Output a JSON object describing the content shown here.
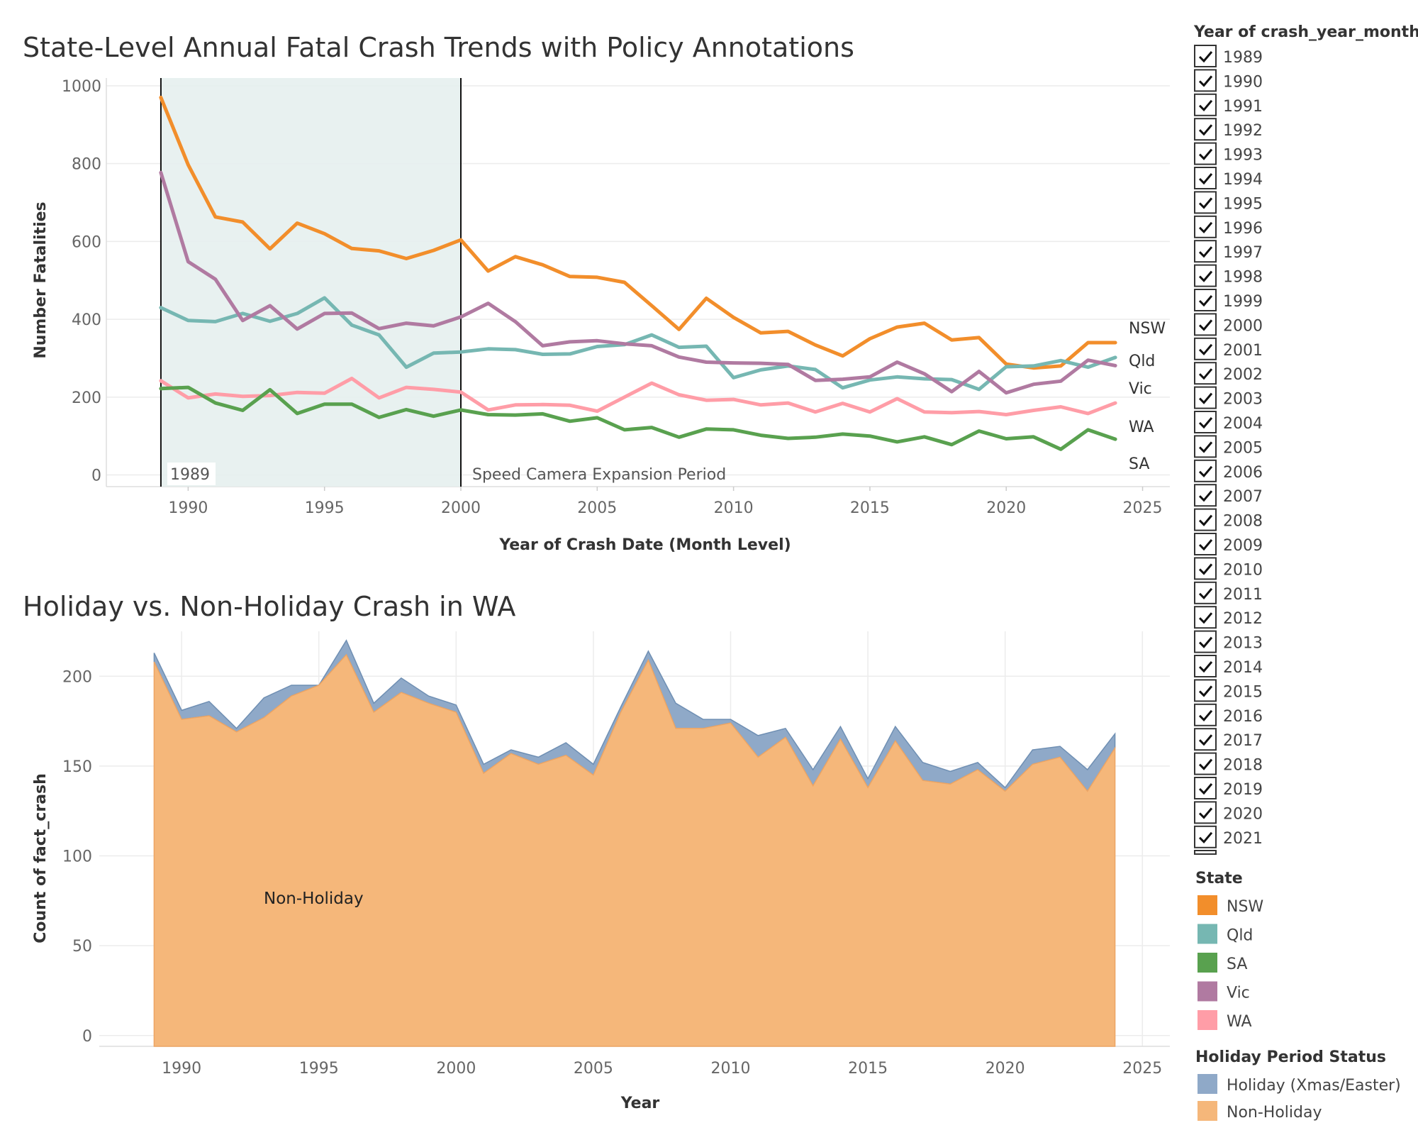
{
  "line_chart": {
    "title": "State-Level Annual Fatal Crash Trends with Policy Annotations",
    "xlabel": "Year of Crash Date (Month Level)",
    "ylabel": "Number Fatalities",
    "x_ticks": [
      "1990",
      "1995",
      "2000",
      "2005",
      "2010",
      "2015",
      "2020",
      "2025"
    ],
    "y_ticks": [
      "0",
      "200",
      "400",
      "600",
      "800",
      "1000"
    ],
    "annotations": {
      "start_label": "1989",
      "period_label": "Speed Camera Expansion Period"
    },
    "end_labels": [
      "NSW",
      "Qld",
      "Vic",
      "WA",
      "SA"
    ]
  },
  "area_chart": {
    "title": "Holiday vs. Non-Holiday Crash in WA",
    "xlabel": "Year",
    "ylabel": "Count of fact_crash",
    "x_ticks": [
      "1990",
      "1995",
      "2000",
      "2005",
      "2010",
      "2015",
      "2020",
      "2025"
    ],
    "y_ticks": [
      "0",
      "50",
      "100",
      "150",
      "200"
    ],
    "area_label": "Non-Holiday"
  },
  "year_filter": {
    "title": "Year of crash_year_month",
    "items": [
      "1989",
      "1990",
      "1991",
      "1992",
      "1993",
      "1994",
      "1995",
      "1996",
      "1997",
      "1998",
      "1999",
      "2000",
      "2001",
      "2002",
      "2003",
      "2004",
      "2005",
      "2006",
      "2007",
      "2008",
      "2009",
      "2010",
      "2011",
      "2012",
      "2013",
      "2014",
      "2015",
      "2016",
      "2017",
      "2018",
      "2019",
      "2020",
      "2021"
    ]
  },
  "state_legend": {
    "title": "State",
    "items": [
      {
        "label": "NSW",
        "color": "#f28e2b"
      },
      {
        "label": "Qld",
        "color": "#76b7b2"
      },
      {
        "label": "SA",
        "color": "#59a14f"
      },
      {
        "label": "Vic",
        "color": "#b07aa1"
      },
      {
        "label": "WA",
        "color": "#ff9da7"
      }
    ]
  },
  "holiday_legend": {
    "title": "Holiday Period Status",
    "items": [
      {
        "label": "Holiday (Xmas/Easter)",
        "color": "#8fa9c8"
      },
      {
        "label": "Non-Holiday",
        "color": "#f5b77a"
      }
    ]
  },
  "chart_data": [
    {
      "type": "line",
      "title": "State-Level Annual Fatal Crash Trends with Policy Annotations",
      "xlabel": "Year of Crash Date (Month Level)",
      "ylabel": "Number Fatalities",
      "xlim": [
        1987,
        2026
      ],
      "ylim": [
        -30,
        1020
      ],
      "grid": true,
      "shaded_period": [
        1989,
        2000
      ],
      "x": [
        1989,
        1990,
        1991,
        1992,
        1993,
        1994,
        1995,
        1996,
        1997,
        1998,
        1999,
        2000,
        2001,
        2002,
        2003,
        2004,
        2005,
        2006,
        2007,
        2008,
        2009,
        2010,
        2011,
        2012,
        2013,
        2014,
        2015,
        2016,
        2017,
        2018,
        2019,
        2020,
        2021,
        2022,
        2023,
        2024
      ],
      "series": [
        {
          "name": "NSW",
          "color": "#f28e2b",
          "values": [
            970,
            797,
            663,
            650,
            581,
            647,
            620,
            582,
            576,
            556,
            577,
            604,
            524,
            561,
            540,
            510,
            508,
            495,
            435,
            374,
            454,
            405,
            365,
            369,
            334,
            306,
            350,
            380,
            390,
            347,
            353,
            285,
            275,
            280,
            340,
            340
          ]
        },
        {
          "name": "Qld",
          "color": "#76b7b2",
          "values": [
            430,
            397,
            394,
            415,
            395,
            415,
            455,
            385,
            360,
            277,
            313,
            316,
            324,
            322,
            310,
            311,
            330,
            335,
            360,
            328,
            331,
            250,
            270,
            280,
            271,
            224,
            244,
            252,
            247,
            245,
            220,
            278,
            280,
            294,
            277,
            302
          ]
        },
        {
          "name": "Vic",
          "color": "#b07aa1",
          "values": [
            777,
            548,
            503,
            397,
            435,
            375,
            415,
            416,
            376,
            390,
            383,
            406,
            441,
            394,
            332,
            342,
            345,
            337,
            332,
            303,
            290,
            288,
            287,
            284,
            243,
            246,
            252,
            290,
            260,
            214,
            266,
            211,
            233,
            241,
            295,
            281
          ]
        },
        {
          "name": "WA",
          "color": "#ff9da7",
          "values": [
            242,
            198,
            208,
            202,
            204,
            212,
            210,
            248,
            198,
            225,
            220,
            213,
            167,
            180,
            181,
            179,
            164,
            200,
            236,
            206,
            192,
            194,
            180,
            185,
            162,
            184,
            162,
            196,
            162,
            160,
            163,
            155,
            166,
            175,
            158,
            185
          ]
        },
        {
          "name": "SA",
          "color": "#59a14f",
          "values": [
            222,
            225,
            185,
            166,
            219,
            158,
            182,
            182,
            148,
            168,
            151,
            167,
            155,
            154,
            157,
            138,
            147,
            116,
            122,
            97,
            118,
            116,
            102,
            94,
            97,
            105,
            100,
            85,
            98,
            78,
            113,
            93,
            98,
            66,
            116,
            92
          ]
        }
      ]
    },
    {
      "type": "area",
      "title": "Holiday vs. Non-Holiday Crash in WA",
      "xlabel": "Year",
      "ylabel": "Count of fact_crash",
      "xlim": [
        1987,
        2026
      ],
      "ylim": [
        -6,
        225
      ],
      "grid": true,
      "stacked": true,
      "x": [
        1989,
        1990,
        1991,
        1992,
        1993,
        1994,
        1995,
        1996,
        1997,
        1998,
        1999,
        2000,
        2001,
        2002,
        2003,
        2004,
        2005,
        2006,
        2007,
        2008,
        2009,
        2010,
        2011,
        2012,
        2013,
        2014,
        2015,
        2016,
        2017,
        2018,
        2019,
        2020,
        2021,
        2022,
        2023,
        2024
      ],
      "series": [
        {
          "name": "Non-Holiday",
          "color": "#f5b77a",
          "values": [
            208,
            176,
            178,
            169,
            177,
            189,
            195,
            212,
            180,
            191,
            185,
            180,
            146,
            157,
            151,
            156,
            145,
            180,
            209,
            171,
            171,
            174,
            155,
            166,
            139,
            165,
            138,
            164,
            142,
            140,
            148,
            136,
            151,
            155,
            136,
            160
          ]
        },
        {
          "name": "Holiday (Xmas/Easter)",
          "color": "#8fa9c8",
          "values": [
            5,
            5,
            8,
            2,
            11,
            6,
            0,
            8,
            5,
            8,
            4,
            4,
            5,
            2,
            4,
            7,
            6,
            3,
            5,
            14,
            5,
            2,
            12,
            5,
            9,
            7,
            5,
            8,
            10,
            7,
            4,
            2,
            8,
            6,
            12,
            8
          ]
        }
      ]
    }
  ]
}
